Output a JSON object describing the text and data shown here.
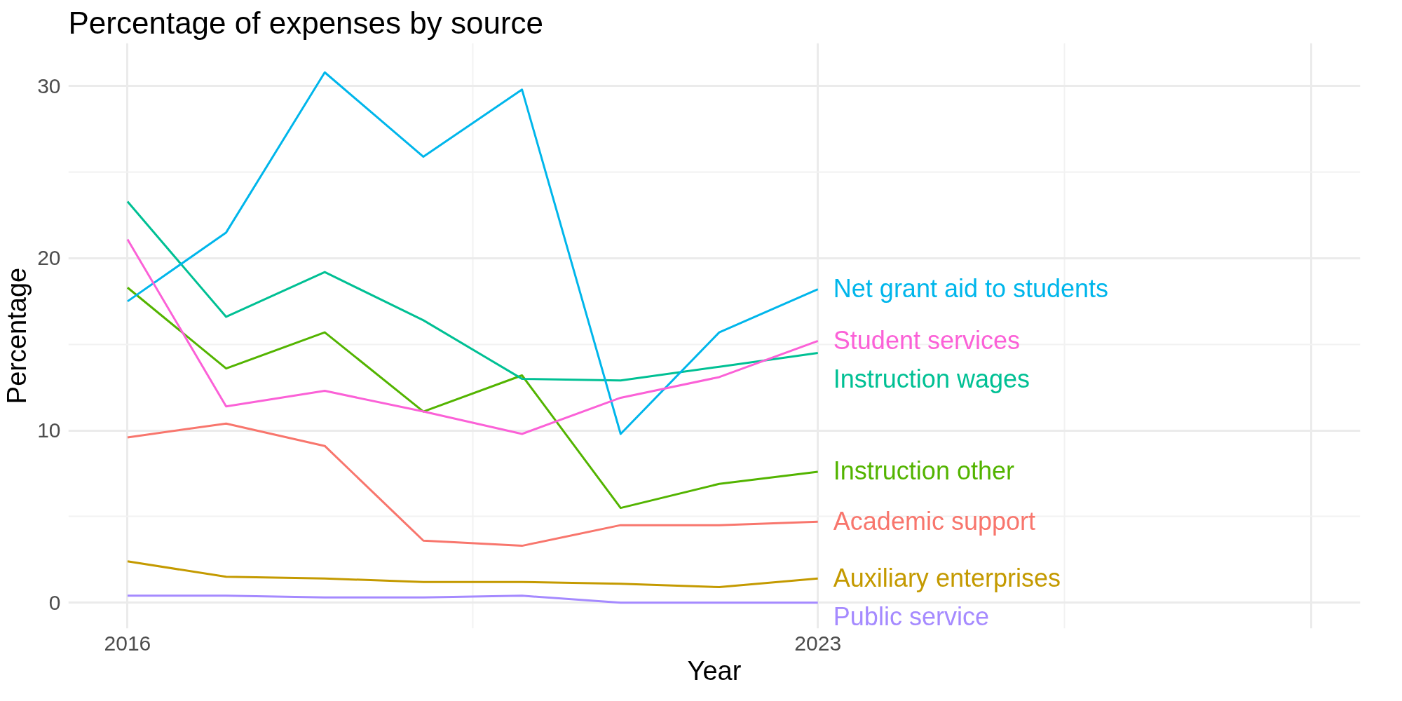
{
  "chart_data": {
    "type": "line",
    "title": "Percentage of expenses by source",
    "xlabel": "Year",
    "ylabel": "Percentage",
    "x": [
      2016,
      2017,
      2018,
      2019,
      2020,
      2021,
      2022,
      2023
    ],
    "series": [
      {
        "name": "Academic support",
        "color": "#f8766d",
        "values": [
          9.6,
          10.4,
          9.1,
          3.6,
          3.3,
          4.5,
          4.5,
          4.7
        ]
      },
      {
        "name": "Auxiliary enterprises",
        "color": "#c49a00",
        "values": [
          2.4,
          1.5,
          1.4,
          1.2,
          1.2,
          1.1,
          0.9,
          1.4
        ]
      },
      {
        "name": "Instruction other",
        "color": "#53b400",
        "values": [
          18.3,
          13.6,
          15.7,
          11.1,
          13.2,
          5.5,
          6.9,
          7.6
        ]
      },
      {
        "name": "Instruction wages",
        "color": "#00c094",
        "values": [
          23.3,
          16.6,
          19.2,
          16.4,
          13.0,
          12.9,
          13.7,
          14.5
        ]
      },
      {
        "name": "Net grant aid to students",
        "color": "#00b6eb",
        "values": [
          17.5,
          21.5,
          30.8,
          25.9,
          29.8,
          9.8,
          15.7,
          18.2
        ]
      },
      {
        "name": "Public service",
        "color": "#a58aff",
        "values": [
          0.4,
          0.4,
          0.3,
          0.3,
          0.4,
          0,
          0,
          0
        ]
      },
      {
        "name": "Student services",
        "color": "#fb61d7",
        "values": [
          21.1,
          11.4,
          12.3,
          11.1,
          9.8,
          11.9,
          13.1,
          15.2
        ]
      }
    ],
    "xlim": [
      2015.4,
      2028.5
    ],
    "xticks": [
      2016,
      2023,
      {
        "value": 2028,
        "label": null
      }
    ],
    "ylim": [
      -1.5,
      32.5
    ],
    "yticks": [
      0,
      10,
      20,
      30
    ],
    "grid": true,
    "marker": "none",
    "line_style": "solid"
  }
}
